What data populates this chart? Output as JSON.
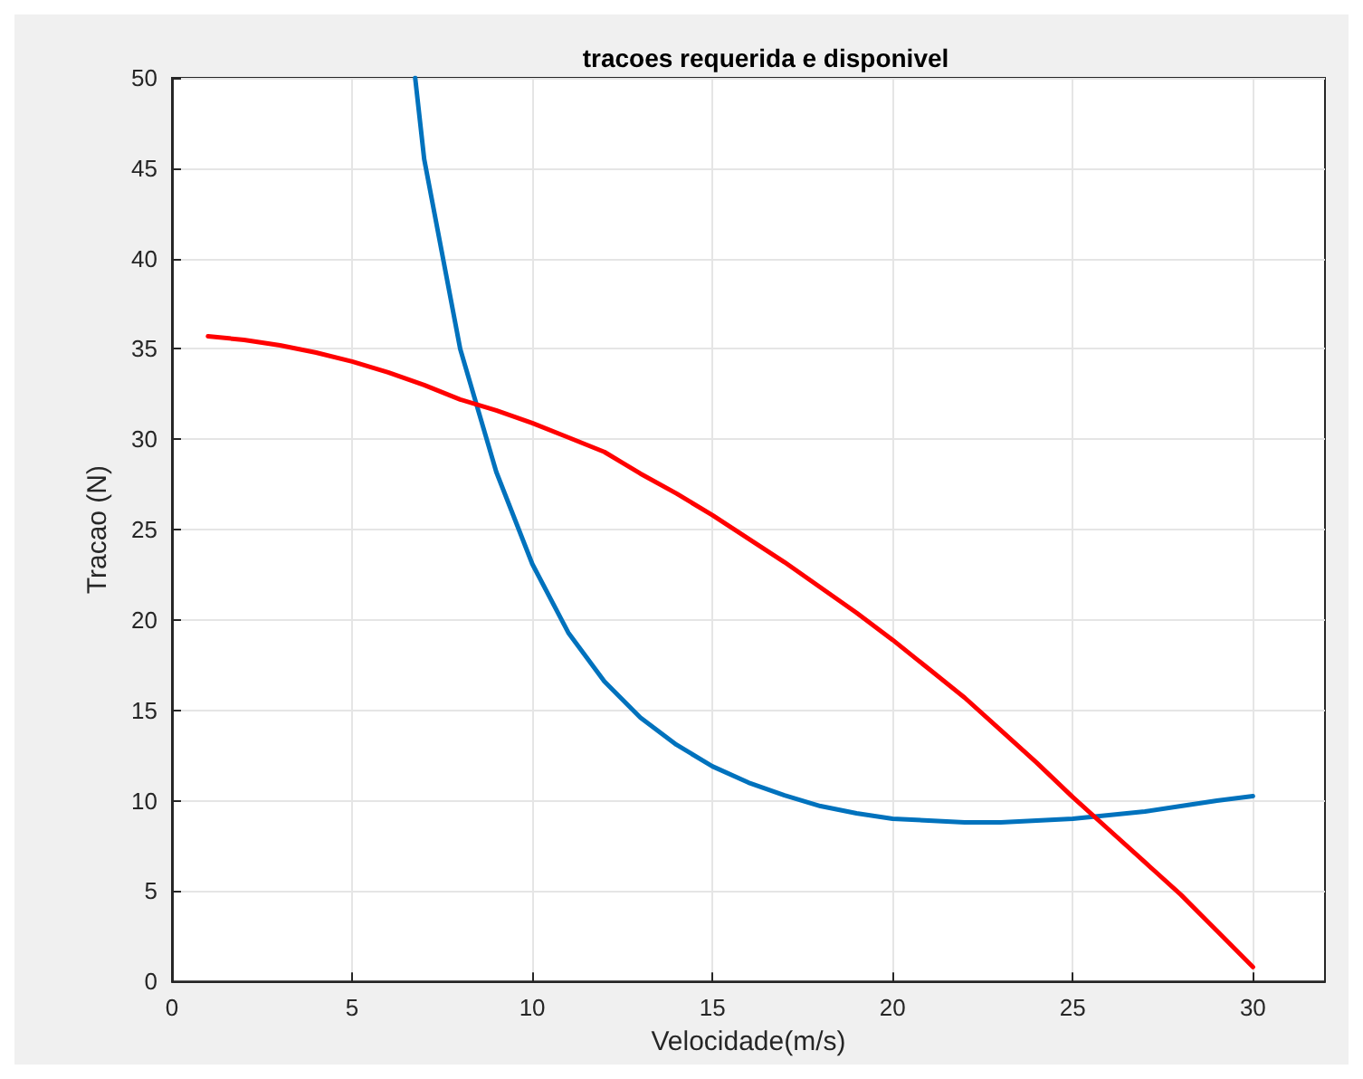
{
  "chart_data": {
    "type": "line",
    "title": "tracoes requerida e disponivel",
    "xlabel": "Velocidade(m/s)",
    "ylabel": "Tracao (N)",
    "xlim": [
      0,
      32
    ],
    "ylim": [
      0,
      50
    ],
    "xticks": [
      0,
      5,
      10,
      15,
      20,
      25,
      30
    ],
    "yticks": [
      0,
      5,
      10,
      15,
      20,
      25,
      30,
      35,
      40,
      45,
      50
    ],
    "grid": true,
    "marker": "none",
    "line_style": "solid",
    "series": [
      {
        "color": "#0072bd",
        "x": [
          6.75,
          7,
          8,
          9,
          10,
          11,
          12,
          13,
          14,
          15,
          16,
          17,
          18,
          19,
          20,
          21,
          22,
          23,
          24,
          25,
          26,
          27,
          28,
          29,
          30
        ],
        "values": [
          50,
          45.5,
          35,
          28.2,
          23.1,
          19.3,
          16.6,
          14.6,
          13.1,
          11.9,
          11,
          10.3,
          9.7,
          9.3,
          9,
          8.9,
          8.8,
          8.8,
          8.9,
          9,
          9.2,
          9.4,
          9.7,
          10,
          10.25
        ]
      },
      {
        "color": "#ff0000",
        "x": [
          1,
          2,
          3,
          4,
          5,
          6,
          7,
          8,
          9,
          10,
          11,
          12,
          13,
          14,
          15,
          16,
          17,
          18,
          19,
          20,
          21,
          22,
          23,
          24,
          25,
          26,
          27,
          28,
          29,
          30
        ],
        "values": [
          35.7,
          35.5,
          35.2,
          34.8,
          34.3,
          33.7,
          33,
          32.2,
          31.6,
          30.9,
          30.1,
          29.3,
          28.1,
          27,
          25.8,
          24.5,
          23.2,
          21.8,
          20.4,
          18.9,
          17.3,
          15.7,
          13.9,
          12.1,
          10.2,
          8.4,
          6.6,
          4.8,
          2.8,
          0.8
        ]
      }
    ]
  }
}
